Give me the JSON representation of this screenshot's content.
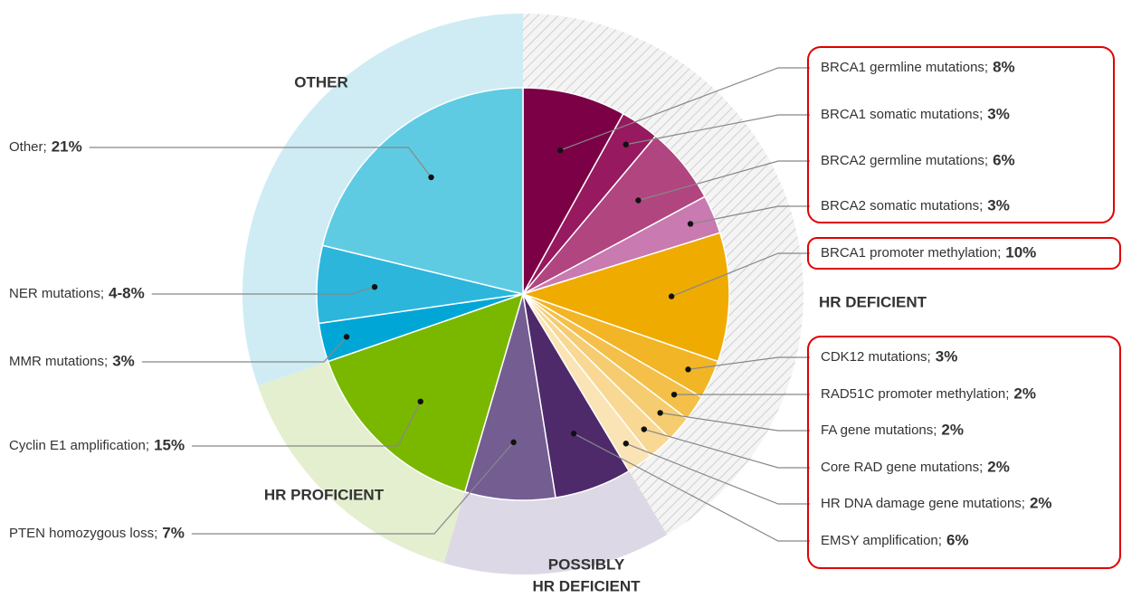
{
  "chart_data": {
    "type": "pie",
    "slices": [
      {
        "name": "BRCA1 germline mutations;",
        "value": 8,
        "value_label": "8%",
        "color": "#7b0046",
        "label_color": "#7b1a55",
        "group": 0
      },
      {
        "name": "BRCA1 somatic mutations;",
        "value": 3,
        "value_label": "3%",
        "color": "#97195f",
        "label_color": "#7b1a55",
        "group": 0
      },
      {
        "name": "BRCA2 germline mutations;",
        "value": 6,
        "value_label": "6%",
        "color": "#b0457f",
        "label_color": "#7b1a55",
        "group": 0
      },
      {
        "name": "BRCA2 somatic mutations;",
        "value": 3,
        "value_label": "3%",
        "color": "#c97ab0",
        "label_color": "#7b1a55",
        "group": 0
      },
      {
        "name": "BRCA1 promoter methylation;",
        "value": 10,
        "value_label": "10%",
        "color": "#f0ab00",
        "label_color": "#d4a85a",
        "group": 0
      },
      {
        "name": "CDK12 mutations;",
        "value": 3,
        "value_label": "3%",
        "color": "#f2b526",
        "label_color": "#d4a85a",
        "group": 0
      },
      {
        "name": "RAD51C promoter methylation;",
        "value": 2,
        "value_label": "2%",
        "color": "#f4c04a",
        "label_color": "#d4a85a",
        "group": 0
      },
      {
        "name": "FA gene mutations;",
        "value": 2,
        "value_label": "2%",
        "color": "#f6cc70",
        "label_color": "#d4a85a",
        "group": 0
      },
      {
        "name": "Core RAD gene mutations;",
        "value": 2,
        "value_label": "2%",
        "color": "#f8d893",
        "label_color": "#d4a85a",
        "group": 0
      },
      {
        "name": "HR DNA damage gene mutations;",
        "value": 2,
        "value_label": "2%",
        "color": "#fae4b5",
        "label_color": "#d4a85a",
        "group": 0
      },
      {
        "name": "EMSY amplification;",
        "value": 6,
        "value_label": "6%",
        "color": "#4e2a6b",
        "label_color": "#4e2a6b",
        "group": 1
      },
      {
        "name": "PTEN homozygous loss;",
        "value": 7,
        "value_label": "7%",
        "color": "#735d91",
        "label_color": "#4e3a72",
        "group": 1
      },
      {
        "name": "Cyclin E1 amplification;",
        "value": 15,
        "value_label": "15%",
        "color": "#7ab800",
        "label_color": "#8cb43c",
        "group": 2
      },
      {
        "name": "MMR mutations;",
        "value": 3,
        "value_label": "3%",
        "color": "#00a7d6",
        "label_color": "#2aa3c0",
        "group": 3
      },
      {
        "name": "NER mutations;",
        "value": 6,
        "value_label": "4-8%",
        "color": "#2cb6dc",
        "label_color": "#2aa3c0",
        "group": 3
      },
      {
        "name": "Other;",
        "value": 21,
        "value_label": "21%",
        "color": "#5fcbe3",
        "label_color": "#2aa3c0",
        "group": 3
      }
    ],
    "groups": [
      {
        "lines": [
          "HR DEFICIENT"
        ],
        "color": "#f4f4f4",
        "hatched": true,
        "label_color": "#7b1a55"
      },
      {
        "lines": [
          "POSSIBLY",
          "HR DEFICIENT"
        ],
        "color": "#dcd8e6",
        "hatched": false,
        "label_color": "#4e3a72"
      },
      {
        "lines": [
          "HR PROFICIENT"
        ],
        "color": "#e3efcf",
        "hatched": false,
        "label_color": "#8cb43c"
      },
      {
        "lines": [
          "OTHER"
        ],
        "color": "#cfecf4",
        "hatched": false,
        "label_color": "#2aa3c0"
      }
    ]
  }
}
